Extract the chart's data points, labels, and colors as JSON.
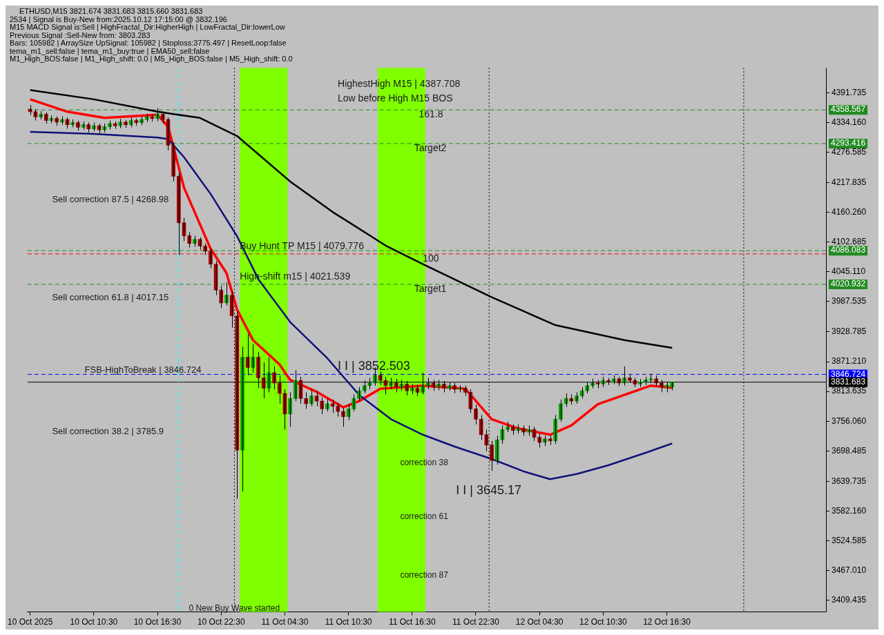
{
  "chart_data": {
    "type": "candlestick",
    "title": "ETHUSD,M15  3821.674 3831.683 3815.660 3831.683",
    "x": [
      "2025-10-10T04:30",
      "2025-10-10T05:00",
      "2025-10-10T05:30",
      "2025-10-10T06:00",
      "2025-10-10T06:30",
      "2025-10-10T07:00",
      "2025-10-10T07:30",
      "2025-10-10T08:00",
      "2025-10-10T08:30",
      "2025-10-10T09:00",
      "2025-10-10T09:30",
      "2025-10-10T10:00",
      "2025-10-10T10:30",
      "2025-10-10T11:00",
      "2025-10-10T11:30",
      "2025-10-10T12:00",
      "2025-10-10T12:30",
      "2025-10-10T13:00",
      "2025-10-10T13:30",
      "2025-10-10T14:00",
      "2025-10-10T14:30",
      "2025-10-10T15:00",
      "2025-10-10T15:30",
      "2025-10-10T16:00",
      "2025-10-10T16:30",
      "2025-10-10T17:00",
      "2025-10-10T17:30",
      "2025-10-10T18:00",
      "2025-10-10T18:30",
      "2025-10-10T19:00",
      "2025-10-10T19:30",
      "2025-10-10T20:00",
      "2025-10-10T20:30",
      "2025-10-10T21:00",
      "2025-10-10T21:30",
      "2025-10-10T22:00",
      "2025-10-10T22:30",
      "2025-10-10T23:00",
      "2025-10-10T23:30",
      "2025-10-11T00:00",
      "2025-10-11T00:30",
      "2025-10-11T01:00",
      "2025-10-11T01:30",
      "2025-10-11T02:00",
      "2025-10-11T02:30",
      "2025-10-11T03:00",
      "2025-10-11T03:30",
      "2025-10-11T04:00",
      "2025-10-11T04:30",
      "2025-10-11T05:00",
      "2025-10-11T05:30",
      "2025-10-11T06:00",
      "2025-10-11T06:30",
      "2025-10-11T07:00",
      "2025-10-11T07:30",
      "2025-10-11T08:00",
      "2025-10-11T08:30",
      "2025-10-11T09:00",
      "2025-10-11T09:30",
      "2025-10-11T10:00",
      "2025-10-11T10:30",
      "2025-10-11T11:00",
      "2025-10-11T11:30",
      "2025-10-11T12:00",
      "2025-10-11T12:30",
      "2025-10-11T13:00",
      "2025-10-11T13:30",
      "2025-10-11T14:00",
      "2025-10-11T14:30",
      "2025-10-11T15:00",
      "2025-10-11T15:30",
      "2025-10-11T16:00",
      "2025-10-11T16:30",
      "2025-10-11T17:00",
      "2025-10-11T17:30",
      "2025-10-11T18:00",
      "2025-10-11T18:30",
      "2025-10-11T19:00",
      "2025-10-11T19:30",
      "2025-10-11T20:00",
      "2025-10-11T20:30",
      "2025-10-11T21:00",
      "2025-10-11T21:30",
      "2025-10-11T22:00",
      "2025-10-11T22:30",
      "2025-10-11T23:00",
      "2025-10-11T23:30",
      "2025-10-12T00:00",
      "2025-10-12T00:30",
      "2025-10-12T01:00",
      "2025-10-12T01:30",
      "2025-10-12T02:00",
      "2025-10-12T02:30",
      "2025-10-12T03:00",
      "2025-10-12T03:30",
      "2025-10-12T04:00",
      "2025-10-12T04:30",
      "2025-10-12T05:00",
      "2025-10-12T05:30",
      "2025-10-12T06:00",
      "2025-10-12T06:30",
      "2025-10-12T07:00",
      "2025-10-12T07:30",
      "2025-10-12T08:00",
      "2025-10-12T08:30",
      "2025-10-12T09:00",
      "2025-10-12T09:30",
      "2025-10-12T10:00",
      "2025-10-12T10:30",
      "2025-10-12T11:00",
      "2025-10-12T11:30",
      "2025-10-12T12:00",
      "2025-10-12T12:30",
      "2025-10-12T13:00",
      "2025-10-12T13:30",
      "2025-10-12T14:00",
      "2025-10-12T14:30",
      "2025-10-12T15:00",
      "2025-10-12T15:30",
      "2025-10-12T16:00",
      "2025-10-12T16:30",
      "2025-10-12T17:00"
    ],
    "ohlc": [
      [
        4360,
        4368,
        4348,
        4355
      ],
      [
        4355,
        4360,
        4338,
        4345
      ],
      [
        4345,
        4356,
        4340,
        4350
      ],
      [
        4350,
        4354,
        4332,
        4338
      ],
      [
        4338,
        4348,
        4333,
        4342
      ],
      [
        4342,
        4346,
        4328,
        4335
      ],
      [
        4335,
        4346,
        4330,
        4340
      ],
      [
        4340,
        4344,
        4322,
        4330
      ],
      [
        4330,
        4340,
        4325,
        4334
      ],
      [
        4334,
        4338,
        4318,
        4325
      ],
      [
        4325,
        4336,
        4320,
        4330
      ],
      [
        4330,
        4334,
        4315,
        4322
      ],
      [
        4322,
        4334,
        4317,
        4328
      ],
      [
        4328,
        4332,
        4313,
        4320
      ],
      [
        4320,
        4332,
        4315,
        4326
      ],
      [
        4326,
        4338,
        4321,
        4332
      ],
      [
        4332,
        4336,
        4322,
        4328
      ],
      [
        4328,
        4341,
        4323,
        4335
      ],
      [
        4335,
        4339,
        4324,
        4330
      ],
      [
        4330,
        4344,
        4325,
        4338
      ],
      [
        4338,
        4342,
        4328,
        4334
      ],
      [
        4334,
        4346,
        4329,
        4340
      ],
      [
        4340,
        4351,
        4335,
        4345
      ],
      [
        4345,
        4350,
        4336,
        4342
      ],
      [
        4342,
        4362,
        4337,
        4350
      ],
      [
        4350,
        4356,
        4332,
        4340
      ],
      [
        4340,
        4344,
        4280,
        4290
      ],
      [
        4290,
        4296,
        4220,
        4230
      ],
      [
        4230,
        4236,
        4078,
        4140
      ],
      [
        4140,
        4150,
        4105,
        4115
      ],
      [
        4115,
        4122,
        4092,
        4100
      ],
      [
        4100,
        4115,
        4094,
        4108
      ],
      [
        4108,
        4112,
        4088,
        4095
      ],
      [
        4095,
        4100,
        4078,
        4085
      ],
      [
        4085,
        4090,
        4052,
        4060
      ],
      [
        4060,
        4066,
        4000,
        4010
      ],
      [
        4010,
        4018,
        3975,
        3985
      ],
      [
        3985,
        4025,
        3980,
        4000
      ],
      [
        4000,
        4008,
        3937,
        3960
      ],
      [
        3960,
        3968,
        3606,
        3700
      ],
      [
        3700,
        3900,
        3620,
        3880
      ],
      [
        3880,
        3925,
        3845,
        3860
      ],
      [
        3860,
        3905,
        3850,
        3880
      ],
      [
        3880,
        3890,
        3820,
        3840
      ],
      [
        3840,
        3870,
        3800,
        3820
      ],
      [
        3820,
        3880,
        3812,
        3850
      ],
      [
        3850,
        3862,
        3818,
        3830
      ],
      [
        3830,
        3845,
        3790,
        3810
      ],
      [
        3810,
        3818,
        3740,
        3770
      ],
      [
        3770,
        3812,
        3745,
        3800
      ],
      [
        3800,
        3855,
        3795,
        3835
      ],
      [
        3835,
        3842,
        3790,
        3800
      ],
      [
        3800,
        3812,
        3780,
        3790
      ],
      [
        3790,
        3818,
        3785,
        3805
      ],
      [
        3805,
        3815,
        3785,
        3795
      ],
      [
        3795,
        3802,
        3770,
        3780
      ],
      [
        3780,
        3800,
        3775,
        3790
      ],
      [
        3790,
        3798,
        3772,
        3785
      ],
      [
        3785,
        3792,
        3765,
        3775
      ],
      [
        3775,
        3782,
        3745,
        3765
      ],
      [
        3765,
        3790,
        3758,
        3780
      ],
      [
        3780,
        3808,
        3775,
        3800
      ],
      [
        3800,
        3822,
        3795,
        3815
      ],
      [
        3815,
        3835,
        3810,
        3825
      ],
      [
        3825,
        3840,
        3818,
        3830
      ],
      [
        3830,
        3860,
        3825,
        3845
      ],
      [
        3845,
        3852,
        3826,
        3835
      ],
      [
        3835,
        3842,
        3808,
        3825
      ],
      [
        3825,
        3840,
        3818,
        3830
      ],
      [
        3830,
        3838,
        3812,
        3822
      ],
      [
        3822,
        3836,
        3815,
        3828
      ],
      [
        3828,
        3834,
        3806,
        3815
      ],
      [
        3815,
        3828,
        3808,
        3820
      ],
      [
        3820,
        3826,
        3805,
        3812
      ],
      [
        3812,
        3850,
        3808,
        3825
      ],
      [
        3825,
        3840,
        3818,
        3830
      ],
      [
        3830,
        3836,
        3815,
        3822
      ],
      [
        3822,
        3836,
        3816,
        3828
      ],
      [
        3828,
        3834,
        3812,
        3820
      ],
      [
        3820,
        3832,
        3815,
        3825
      ],
      [
        3825,
        3830,
        3810,
        3818
      ],
      [
        3818,
        3826,
        3812,
        3820
      ],
      [
        3820,
        3825,
        3805,
        3812
      ],
      [
        3812,
        3818,
        3772,
        3780
      ],
      [
        3780,
        3788,
        3750,
        3760
      ],
      [
        3760,
        3768,
        3720,
        3730
      ],
      [
        3730,
        3740,
        3698,
        3710
      ],
      [
        3710,
        3718,
        3660,
        3680
      ],
      [
        3680,
        3728,
        3672,
        3720
      ],
      [
        3720,
        3748,
        3712,
        3740
      ],
      [
        3740,
        3755,
        3735,
        3745
      ],
      [
        3745,
        3750,
        3730,
        3738
      ],
      [
        3738,
        3750,
        3732,
        3742
      ],
      [
        3742,
        3748,
        3728,
        3735
      ],
      [
        3735,
        3748,
        3728,
        3740
      ],
      [
        3740,
        3745,
        3718,
        3725
      ],
      [
        3725,
        3732,
        3705,
        3715
      ],
      [
        3715,
        3728,
        3708,
        3722
      ],
      [
        3722,
        3728,
        3710,
        3718
      ],
      [
        3718,
        3768,
        3712,
        3760
      ],
      [
        3760,
        3798,
        3755,
        3790
      ],
      [
        3790,
        3810,
        3784,
        3800
      ],
      [
        3800,
        3808,
        3788,
        3795
      ],
      [
        3795,
        3812,
        3790,
        3805
      ],
      [
        3805,
        3822,
        3800,
        3815
      ],
      [
        3815,
        3832,
        3810,
        3825
      ],
      [
        3825,
        3838,
        3820,
        3830
      ],
      [
        3830,
        3836,
        3820,
        3828
      ],
      [
        3828,
        3842,
        3822,
        3835
      ],
      [
        3835,
        3840,
        3826,
        3832
      ],
      [
        3832,
        3845,
        3828,
        3838
      ],
      [
        3838,
        3842,
        3824,
        3830
      ],
      [
        3830,
        3862,
        3825,
        3840
      ],
      [
        3840,
        3846,
        3830,
        3835
      ],
      [
        3835,
        3840,
        3822,
        3828
      ],
      [
        3828,
        3838,
        3822,
        3832
      ],
      [
        3832,
        3842,
        3826,
        3836
      ],
      [
        3836,
        3848,
        3830,
        3838
      ],
      [
        3838,
        3844,
        3824,
        3830
      ],
      [
        3830,
        3836,
        3812,
        3822
      ],
      [
        3822,
        3832,
        3812,
        3826
      ],
      [
        3821.674,
        3831.683,
        3815.66,
        3831.683
      ]
    ],
    "series": [
      {
        "type": "line",
        "color": "#000000",
        "x": [
          "2025-10-10T04:30",
          "2025-10-10T10:30",
          "2025-10-10T16:30",
          "2025-10-10T20:30",
          "2025-10-11T00:00",
          "2025-10-11T05:00",
          "2025-10-11T09:00",
          "2025-10-11T14:00",
          "2025-10-11T17:30",
          "2025-10-12T00:00",
          "2025-10-12T06:00",
          "2025-10-12T12:30",
          "2025-10-12T17:00"
        ],
        "values": [
          4397,
          4379,
          4355,
          4343,
          4308,
          4220,
          4161,
          4096,
          4060,
          3996,
          3942,
          3913,
          3898
        ]
      },
      {
        "type": "line",
        "color": "#10107a",
        "x": [
          "2025-10-10T04:30",
          "2025-10-10T10:30",
          "2025-10-10T16:30",
          "2025-10-10T17:30",
          "2025-10-10T19:00",
          "2025-10-10T21:30",
          "2025-10-11T00:00",
          "2025-10-11T02:00",
          "2025-10-11T05:00",
          "2025-10-11T08:30",
          "2025-10-11T11:30",
          "2025-10-11T14:30",
          "2025-10-11T17:30",
          "2025-10-11T20:30",
          "2025-10-12T00:00",
          "2025-10-12T03:00",
          "2025-10-12T05:30",
          "2025-10-12T08:00",
          "2025-10-12T11:00",
          "2025-10-12T14:30",
          "2025-10-12T17:00"
        ],
        "values": [
          4316,
          4312,
          4305,
          4302,
          4267,
          4196,
          4114,
          4031,
          3948,
          3878,
          3807,
          3760,
          3730,
          3707,
          3683,
          3659,
          3644,
          3654,
          3671,
          3695,
          3713
        ]
      },
      {
        "type": "line",
        "color": "#ff0000",
        "x": [
          "2025-10-10T04:30",
          "2025-10-10T08:00",
          "2025-10-10T11:30",
          "2025-10-10T16:30",
          "2025-10-10T17:30",
          "2025-10-10T19:00",
          "2025-10-10T21:30",
          "2025-10-10T23:00",
          "2025-10-11T00:00",
          "2025-10-11T01:30",
          "2025-10-11T04:00",
          "2025-10-11T05:00",
          "2025-10-11T07:30",
          "2025-10-11T10:00",
          "2025-10-11T11:30",
          "2025-10-11T13:30",
          "2025-10-11T17:30",
          "2025-10-11T21:30",
          "2025-10-12T00:00",
          "2025-10-12T02:30",
          "2025-10-12T05:30",
          "2025-10-12T07:30",
          "2025-10-12T10:00",
          "2025-10-12T12:30",
          "2025-10-12T15:00",
          "2025-10-12T17:00"
        ],
        "values": [
          4379,
          4355,
          4343,
          4349,
          4326,
          4208,
          4090,
          4043,
          3972,
          3913,
          3866,
          3836,
          3813,
          3783,
          3795,
          3819,
          3825,
          3819,
          3760,
          3742,
          3730,
          3748,
          3789,
          3807,
          3825,
          3821
        ]
      }
    ],
    "xlim": [
      "2025-10-10T04:15",
      "2025-10-13T07:30"
    ],
    "xticks": [
      {
        "value": "2025-10-10T04:30",
        "label": "10 Oct 2025"
      },
      {
        "value": "2025-10-10T10:30",
        "label": "10 Oct 10:30"
      },
      {
        "value": "2025-10-10T16:30",
        "label": "10 Oct 16:30"
      },
      {
        "value": "2025-10-10T22:30",
        "label": "10 Oct 22:30"
      },
      {
        "value": "2025-10-11T04:30",
        "label": "11 Oct 04:30"
      },
      {
        "value": "2025-10-11T10:30",
        "label": "11 Oct 10:30"
      },
      {
        "value": "2025-10-11T16:30",
        "label": "11 Oct 16:30"
      },
      {
        "value": "2025-10-11T22:30",
        "label": "11 Oct 22:30"
      },
      {
        "value": "2025-10-12T04:30",
        "label": "12 Oct 04:30"
      },
      {
        "value": "2025-10-12T10:30",
        "label": "12 Oct 10:30"
      },
      {
        "value": "2025-10-12T16:30",
        "label": "12 Oct 16:30"
      }
    ],
    "ylim": [
      3387,
      4440
    ],
    "yticks": [
      3409.435,
      {
        "value": 3467.01,
        "label": "3467.010"
      },
      3524.585,
      {
        "value": 3582.16,
        "label": "3582.160"
      },
      3639.735,
      3698.485,
      {
        "value": 3756.06,
        "label": "3756.060"
      },
      3813.635,
      {
        "value": 3871.21,
        "label": "3871.210"
      },
      3928.785,
      3987.535,
      {
        "value": 4045.11,
        "label": "4045.110"
      },
      4102.685,
      {
        "value": 4160.26,
        "label": "4160.260"
      },
      4217.835,
      4276.585,
      {
        "value": 4334.16,
        "label": "4334.160"
      },
      4391.735
    ],
    "grid": false,
    "legend": false,
    "bands": [
      {
        "axis": "x",
        "from": "2025-10-11T00:15",
        "to": "2025-10-11T04:45",
        "color": "#7fff00"
      },
      {
        "axis": "x",
        "from": "2025-10-11T13:15",
        "to": "2025-10-11T17:45",
        "color": "#7fff00"
      }
    ],
    "ref_lines": [
      {
        "axis": "y",
        "value": 4358.567,
        "label": "4358.567",
        "color": "#228b22",
        "line_style": "dashed"
      },
      {
        "axis": "y",
        "value": 4293.416,
        "label": "4293.416",
        "color": "#228b22",
        "line_style": "dashed"
      },
      {
        "axis": "y",
        "value": 4086.083,
        "label": "4086.083",
        "color": "#228b22",
        "line_style": "dashed"
      },
      {
        "axis": "y",
        "value": 4079.776,
        "color": "#ff0000",
        "line_style": "dashed"
      },
      {
        "axis": "y",
        "value": 4020.932,
        "label": "4020.932",
        "color": "#228b22",
        "line_style": "dashed"
      },
      {
        "axis": "y",
        "value": 3846.724,
        "label": "3846.724",
        "color": "#0000ff",
        "line_style": "dashed"
      },
      {
        "axis": "y",
        "value": 3831.683,
        "label": "3831.683",
        "color": "#000000",
        "line_style": "solid"
      },
      {
        "axis": "x",
        "value": "2025-10-10T18:30",
        "color": "#00ffff",
        "line_style": "dashed"
      },
      {
        "axis": "x",
        "value": "2025-10-10T23:45",
        "color": "#000000",
        "line_style": "dotted"
      },
      {
        "axis": "x",
        "value": "2025-10-11T23:45",
        "color": "#000000",
        "line_style": "dotted"
      },
      {
        "axis": "x",
        "value": "2025-10-12T23:45",
        "color": "#000000",
        "line_style": "dotted"
      }
    ],
    "annotations": [
      "2534 | Signal is Buy-New from:2025.10.12 17:15:00 @ 3832.196",
      "M15 MACD Signal is:Sell | HighFractal_Dir:HigherHigh | LowFractal_Dir:lowerLow",
      "Previous Signal :Sell-New from: 3803.283",
      "Bars: 105982 | ArraySize UpSignal: 105982 | Stoploss:3775.497 | ResetLoop:false",
      "tema_m1_sell:false | tema_m1_buy:true | EMA50_sell:false",
      "M1_High_BOS:false | M1_High_shift: 0.0 | M5_High_BOS:false | M5_High_shift: 0.0",
      "HighestHigh M15 | 4387.708",
      "Low before High M15 BOS",
      {
        "text": "Buy Hunt TP M15 | 4079.776",
        "x": "2025-10-11T00:15",
        "y": 4094.6
      },
      {
        "text": "High-shift m15 | 4021.539",
        "x": "2025-10-11T00:15",
        "y": 4035.6
      },
      "Sell correction 87.5 | 4268.98",
      "Sell correction 61.8 | 4017.15",
      "Sell correction 38.2 | 3785.9",
      "FSB-HighToBreak | 3846.724",
      "I I | 3852.503",
      "I I | 3645.17",
      "161.8",
      "Target2",
      {
        "text": "100",
        "x": "2025-10-11T17:30",
        "y": 4070
      },
      "Target1",
      "correction 38",
      "correction 61",
      "correction 87",
      "0 New Buy Wave started"
    ]
  }
}
